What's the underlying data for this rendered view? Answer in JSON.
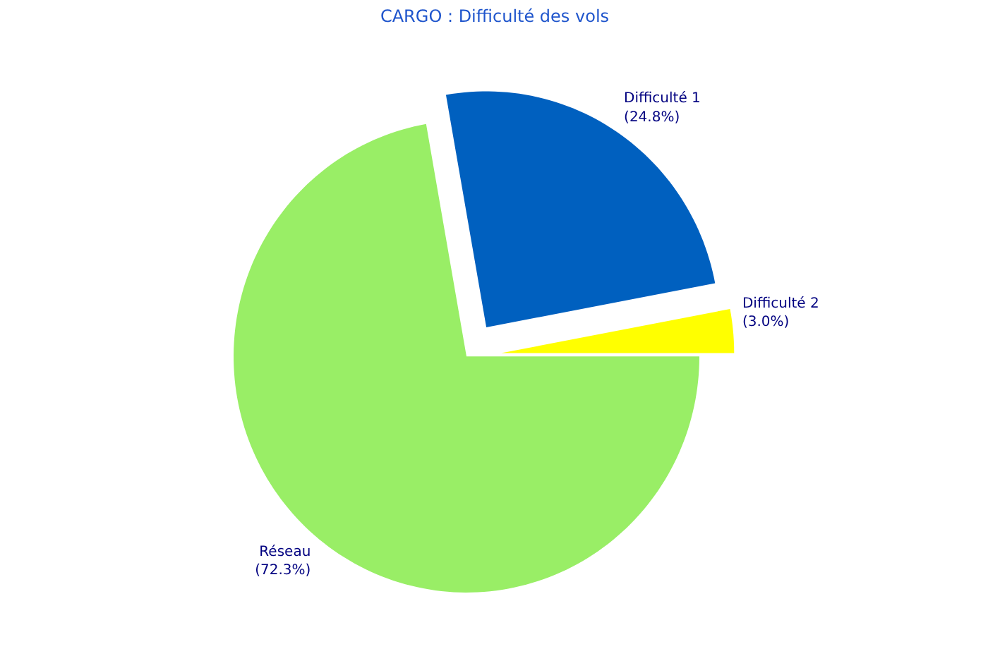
{
  "chart_data": {
    "type": "pie",
    "title": "CARGO : Difficulté des vols",
    "categories": [
      "Réseau",
      "Difficulté 1",
      "Difficulté 2"
    ],
    "values": [
      72.3,
      24.8,
      3.0
    ],
    "colors": [
      "#99ee66",
      "#0060bf",
      "#ffff00"
    ],
    "value_labels": [
      "(72.3%)",
      "(24.8%)",
      "(3.0%)"
    ]
  }
}
